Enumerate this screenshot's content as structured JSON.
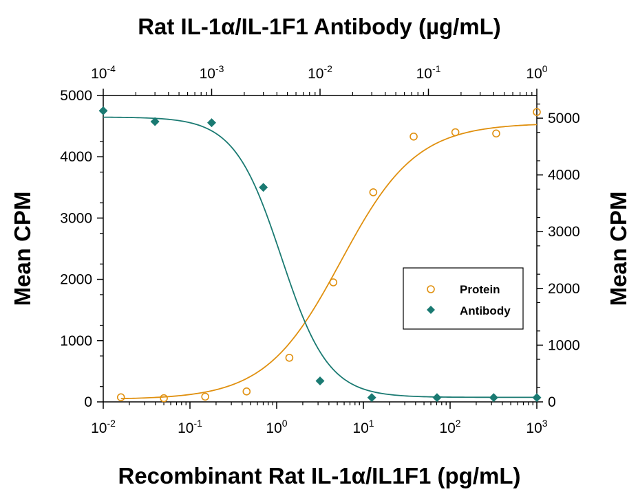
{
  "chart_data": {
    "type": "scatter",
    "title": "Rat IL-1α/IL-1F1 Antibody (µg/mL)",
    "xlabel": "Recombinant Rat IL-1α/IL1F1 (pg/mL)",
    "ylabel_left": "Mean CPM",
    "ylabel_right": "Mean CPM",
    "x_scale": "log",
    "xlim": [
      0.01,
      1000
    ],
    "x_ticks": [
      {
        "base": "10",
        "exp": "-2"
      },
      {
        "base": "10",
        "exp": "-1"
      },
      {
        "base": "10",
        "exp": "0"
      },
      {
        "base": "10",
        "exp": "1"
      },
      {
        "base": "10",
        "exp": "2"
      },
      {
        "base": "10",
        "exp": "3"
      }
    ],
    "x2_scale": "log",
    "x2lim": [
      0.0001,
      1
    ],
    "x2_ticks": [
      {
        "base": "10",
        "exp": "-4"
      },
      {
        "base": "10",
        "exp": "-3"
      },
      {
        "base": "10",
        "exp": "-2"
      },
      {
        "base": "10",
        "exp": "-1"
      },
      {
        "base": "10",
        "exp": "0"
      }
    ],
    "ylim_left": [
      0,
      5000
    ],
    "y_ticks_left": [
      "0",
      "1000",
      "2000",
      "3000",
      "4000",
      "5000"
    ],
    "ylim_right": [
      0,
      5400
    ],
    "y_ticks_right": [
      "0",
      "1000",
      "2000",
      "3000",
      "4000",
      "5000"
    ],
    "grid": false,
    "legend_position": "center-right",
    "series": [
      {
        "name": "Protein",
        "axis": "bottom-left",
        "marker": "open-circle",
        "color": "#E0900F",
        "points": [
          {
            "x": 0.016,
            "y": 75
          },
          {
            "x": 0.05,
            "y": 60
          },
          {
            "x": 0.15,
            "y": 85
          },
          {
            "x": 0.45,
            "y": 170
          },
          {
            "x": 1.4,
            "y": 720
          },
          {
            "x": 4.5,
            "y": 1950
          },
          {
            "x": 13,
            "y": 3420
          },
          {
            "x": 38,
            "y": 4330
          },
          {
            "x": 115,
            "y": 4400
          },
          {
            "x": 340,
            "y": 4380
          },
          {
            "x": 1000,
            "y": 4730
          }
        ],
        "fit": {
          "bottom": 40,
          "top": 4550,
          "ec50": 5.5,
          "hill": 1.0
        }
      },
      {
        "name": "Antibody",
        "axis": "top-right",
        "marker": "filled-diamond",
        "color": "#1A7A72",
        "points": [
          {
            "x": 0.0001,
            "y": 5130
          },
          {
            "x": 0.0003,
            "y": 4940
          },
          {
            "x": 0.001,
            "y": 4920
          },
          {
            "x": 0.003,
            "y": 3780
          },
          {
            "x": 0.01,
            "y": 370
          },
          {
            "x": 0.03,
            "y": 75
          },
          {
            "x": 0.12,
            "y": 75
          },
          {
            "x": 0.4,
            "y": 75
          },
          {
            "x": 1.0,
            "y": 75
          }
        ],
        "fit": {
          "bottom": 80,
          "top": 5020,
          "ec50": 0.0044,
          "hill": 2.0
        }
      }
    ]
  }
}
